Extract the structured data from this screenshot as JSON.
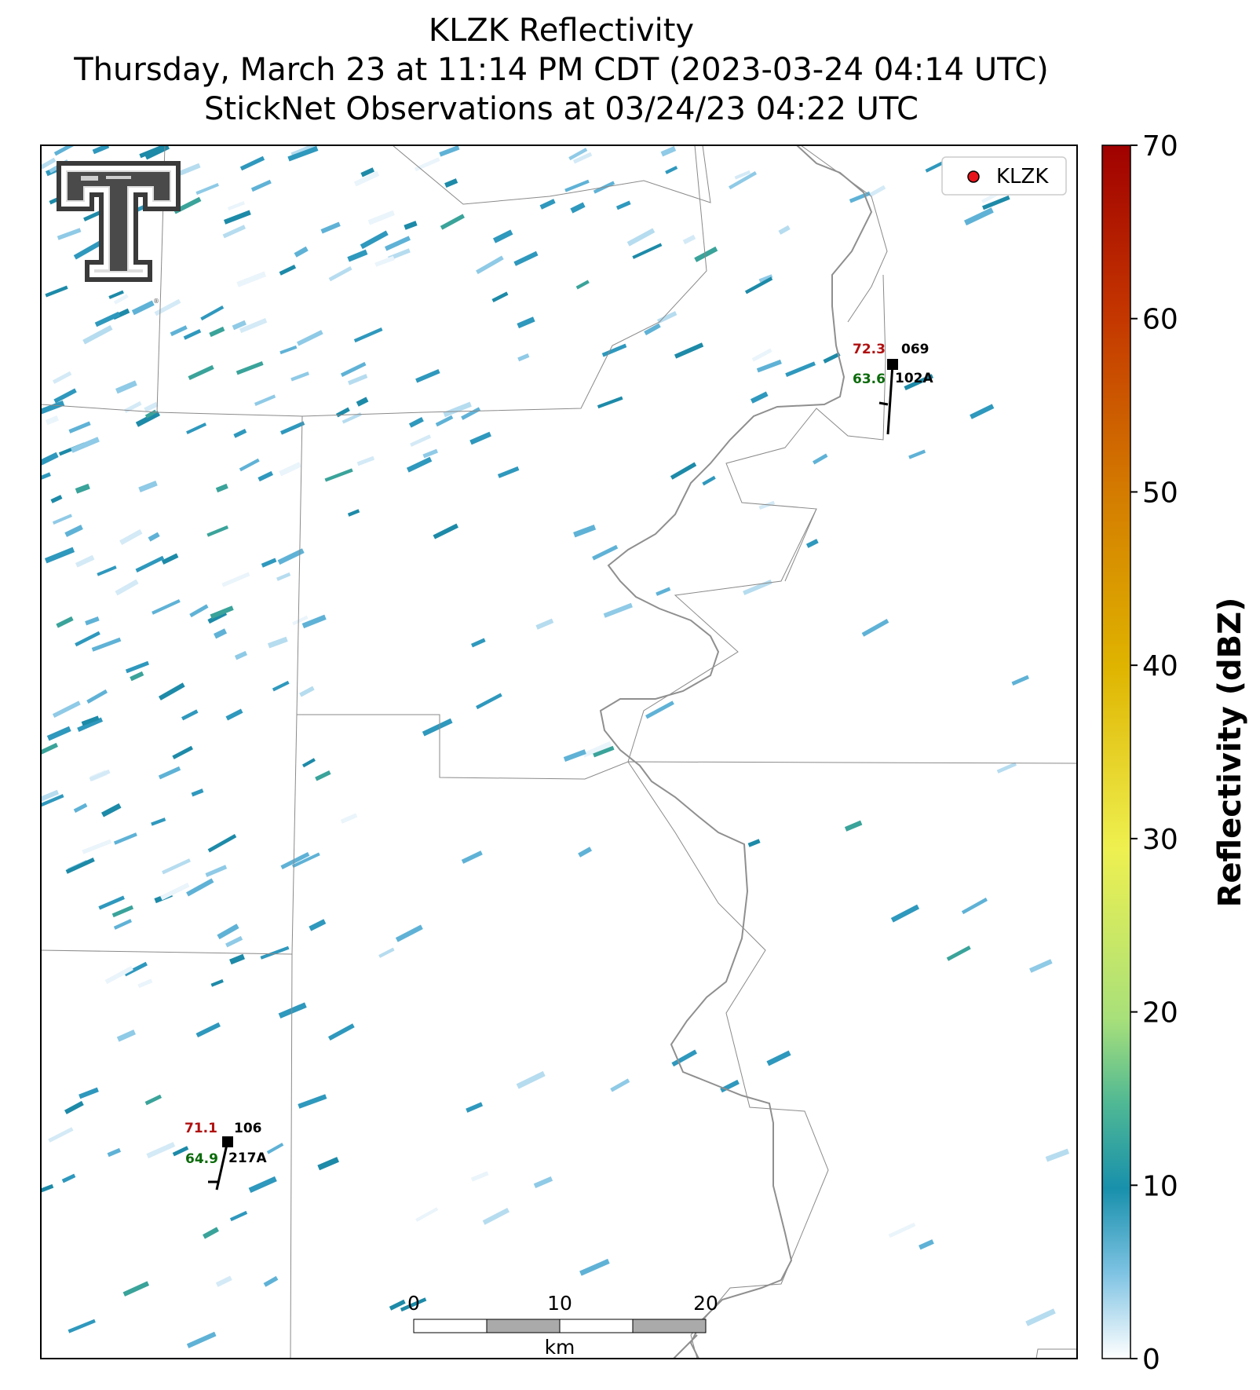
{
  "title": {
    "line1": "KLZK Reflectivity",
    "line2": "Thursday, March 23 at 11:14 PM CDT (2023-03-24 04:14 UTC)",
    "line3": "StickNet Observations at 03/24/23 04:22 UTC"
  },
  "legend": {
    "label": "KLZK",
    "marker_color": "#e8141c"
  },
  "stations": [
    {
      "id": "102A",
      "temperature": "72.3",
      "dewpoint": "63.6",
      "pressure": "069"
    },
    {
      "id": "217A",
      "temperature": "71.1",
      "dewpoint": "64.9",
      "pressure": "106"
    }
  ],
  "colors": {
    "temperature": "#b01010",
    "dewpoint": "#0a6a0a"
  },
  "scalebar": {
    "ticks": [
      "0",
      "10",
      "20"
    ],
    "unit": "km"
  },
  "colorbar": {
    "label": "Reflectivity (dBZ)",
    "ticks": [
      "0",
      "10",
      "20",
      "30",
      "40",
      "50",
      "60",
      "70"
    ],
    "range": [
      0,
      70
    ]
  },
  "logo": {
    "name": "texas-tech-double-t-logo"
  }
}
